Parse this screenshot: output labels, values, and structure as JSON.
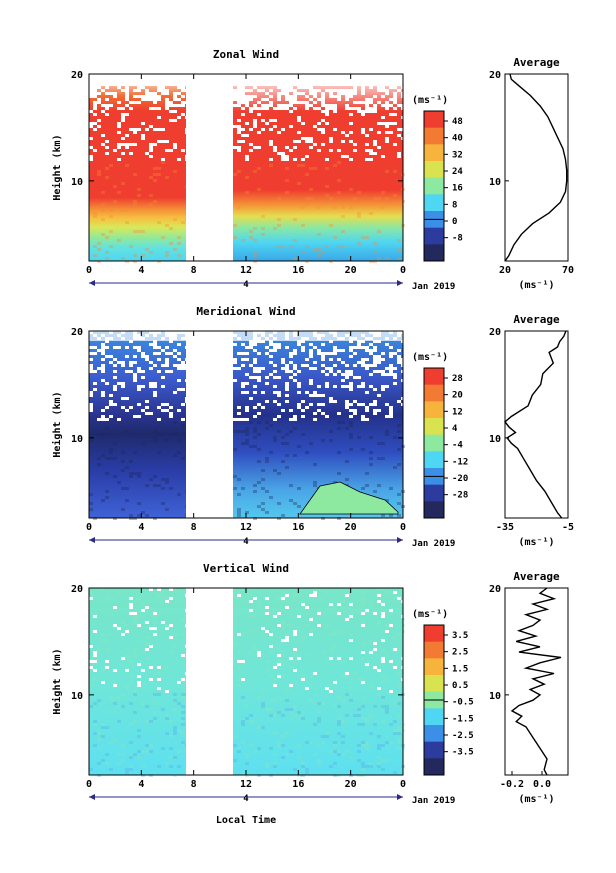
{
  "figure": {
    "x_axis_label": "Local Time",
    "date_label": "Jan 2019",
    "day_label": "4"
  },
  "panels": [
    {
      "title": "Zonal Wind",
      "unit": "(ms⁻¹)",
      "colorbar_ticks": [
        "48",
        "40",
        "32",
        "24",
        "16",
        "8",
        "0",
        "-8"
      ],
      "average_title": "Average",
      "average_xticks": [
        "20",
        "70"
      ],
      "average_unit": "(ms⁻¹)"
    },
    {
      "title": "Meridional Wind",
      "unit": "(ms⁻¹)",
      "colorbar_ticks": [
        "28",
        "20",
        "12",
        "4",
        "-4",
        "-12",
        "-20",
        "-28"
      ],
      "average_title": "Average",
      "average_xticks": [
        "-35",
        "-5"
      ],
      "average_unit": "(ms⁻¹)"
    },
    {
      "title": "Vertical Wind",
      "unit": "(ms⁻¹)",
      "colorbar_ticks": [
        "3.5",
        "2.5",
        "1.5",
        "0.5",
        "-0.5",
        "-1.5",
        "-2.5",
        "-3.5"
      ],
      "average_title": "Average",
      "average_xticks": [
        "-0.2",
        "0.0"
      ],
      "average_unit": "(ms⁻¹)"
    }
  ],
  "chart_data": [
    {
      "type": "heatmap",
      "title": "Zonal Wind",
      "xlabel": "Local Time",
      "ylabel": "Height (km)",
      "x_ticks": [
        "0",
        "4",
        "8",
        "12",
        "16",
        "20",
        "0"
      ],
      "y_ticks": [
        "10",
        "20"
      ],
      "xlim": [
        0,
        24
      ],
      "ylim": [
        2.5,
        20
      ],
      "data_gap_hours": [
        7.5,
        11.2
      ],
      "colorbar": {
        "unit": "ms-1",
        "range": [
          -8,
          52
        ],
        "levels": [
          48,
          40,
          32,
          24,
          16,
          8,
          0,
          -8
        ]
      },
      "profile_hint": [
        [
          2.5,
          10
        ],
        [
          4,
          14
        ],
        [
          6,
          22
        ],
        [
          7,
          30
        ],
        [
          8,
          44
        ],
        [
          9,
          50
        ],
        [
          12,
          52
        ],
        [
          15,
          50
        ],
        [
          18,
          40
        ],
        [
          19,
          30
        ],
        [
          20,
          20
        ]
      ]
    },
    {
      "type": "line",
      "title": "Average",
      "xlabel": "(ms-1)",
      "ylabel": "Height (km)",
      "xlim": [
        20,
        70
      ],
      "ylim": [
        2.5,
        20
      ],
      "x_ticks": [
        "20",
        "70"
      ],
      "y_ticks": [
        "10",
        "20"
      ],
      "y": [
        2.5,
        3,
        4,
        5,
        6,
        7,
        8,
        9,
        10,
        11,
        12,
        13,
        14,
        15,
        16,
        17,
        18,
        19,
        19.5,
        20
      ],
      "x": [
        20,
        23,
        27,
        33,
        42,
        55,
        64,
        68,
        69,
        69,
        68,
        66,
        62,
        58,
        54,
        48,
        40,
        30,
        25,
        24
      ]
    },
    {
      "type": "heatmap",
      "title": "Meridional Wind",
      "xlabel": "Local Time",
      "ylabel": "Height (km)",
      "x_ticks": [
        "0",
        "4",
        "8",
        "12",
        "16",
        "20",
        "0"
      ],
      "y_ticks": [
        "10",
        "20"
      ],
      "xlim": [
        0,
        24
      ],
      "ylim": [
        2.5,
        20
      ],
      "data_gap_hours": [
        7.5,
        11.2
      ],
      "colorbar": {
        "unit": "ms-1",
        "range": [
          -32,
          32
        ],
        "levels": [
          28,
          20,
          12,
          4,
          -4,
          -12,
          -20,
          -28
        ]
      },
      "profile_hint": [
        [
          2.5,
          -12
        ],
        [
          5,
          -20
        ],
        [
          8,
          -30
        ],
        [
          10,
          -32
        ],
        [
          12,
          -20
        ],
        [
          14,
          -15
        ],
        [
          16,
          -20
        ],
        [
          18,
          -12
        ],
        [
          20,
          -8
        ]
      ]
    },
    {
      "type": "line",
      "title": "Average",
      "xlabel": "(ms-1)",
      "ylabel": "Height (km)",
      "xlim": [
        -35,
        -5
      ],
      "ylim": [
        2.5,
        20
      ],
      "x_ticks": [
        "-35",
        "-5"
      ],
      "y_ticks": [
        "10",
        "20"
      ],
      "y": [
        2.5,
        3,
        4,
        5,
        6,
        7,
        8,
        9,
        9.5,
        10,
        10.5,
        11,
        11.5,
        12,
        13,
        14,
        15,
        16,
        17,
        18,
        18.5,
        19,
        19.5,
        20
      ],
      "x": [
        -8,
        -10,
        -13,
        -16,
        -20,
        -23,
        -26,
        -29,
        -32,
        -34,
        -30,
        -33,
        -35,
        -32,
        -24,
        -22,
        -18,
        -17,
        -12,
        -14,
        -10,
        -9,
        -7,
        -6
      ]
    },
    {
      "type": "heatmap",
      "title": "Vertical Wind",
      "xlabel": "Local Time",
      "ylabel": "Height (km)",
      "x_ticks": [
        "0",
        "4",
        "8",
        "12",
        "16",
        "20",
        "0"
      ],
      "y_ticks": [
        "10",
        "20"
      ],
      "xlim": [
        0,
        24
      ],
      "ylim": [
        2.5,
        20
      ],
      "data_gap_hours": [
        7.5,
        11.2
      ],
      "colorbar": {
        "unit": "ms-1",
        "range": [
          -4,
          4
        ],
        "levels": [
          3.5,
          2.5,
          1.5,
          0.5,
          -0.5,
          -1.5,
          -2.5,
          -3.5
        ]
      },
      "profile_hint": [
        [
          2.5,
          0
        ],
        [
          6,
          0.2
        ],
        [
          10,
          0.6
        ],
        [
          14,
          0.8
        ],
        [
          18,
          0.7
        ],
        [
          20,
          0.5
        ]
      ]
    },
    {
      "type": "line",
      "title": "Average",
      "xlabel": "(ms-1)",
      "ylabel": "Height (km)",
      "xlim": [
        -0.3,
        0.15
      ],
      "ylim": [
        2.5,
        20
      ],
      "x_ticks": [
        "-0.2",
        "0.0"
      ],
      "y_ticks": [
        "10",
        "20"
      ],
      "y": [
        2.5,
        3,
        4,
        5,
        6,
        7,
        7.5,
        8,
        8.5,
        9,
        9.5,
        10,
        10.5,
        11,
        11.5,
        12,
        12.5,
        13,
        13.5,
        14,
        14.5,
        15,
        15.5,
        16,
        16.5,
        17,
        17.5,
        18,
        18.5,
        19,
        19.5,
        20
      ],
      "x": [
        0.0,
        -0.02,
        0.0,
        -0.05,
        -0.1,
        -0.15,
        -0.22,
        -0.18,
        -0.25,
        -0.2,
        -0.1,
        -0.05,
        -0.12,
        -0.02,
        -0.1,
        0.05,
        -0.15,
        -0.05,
        0.1,
        -0.2,
        -0.05,
        -0.22,
        -0.08,
        -0.2,
        -0.1,
        -0.05,
        -0.15,
        0.0,
        -0.1,
        0.05,
        -0.05,
        0.0
      ]
    }
  ]
}
